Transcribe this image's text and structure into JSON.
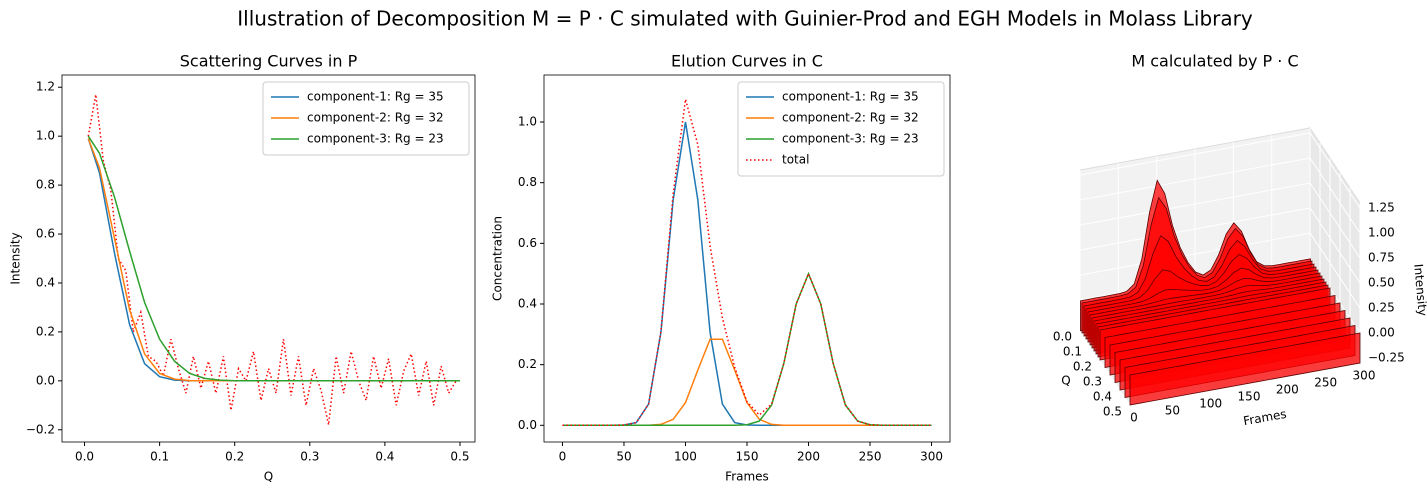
{
  "title": "Illustration of Decomposition M = P · C simulated with Guinier-Prod and EGH Models in Molass Library",
  "chart_data": [
    {
      "type": "line",
      "title": "Scattering Curves in P",
      "xlabel": "Q",
      "ylabel": "Intensity",
      "x": [
        0.005,
        0.02,
        0.04,
        0.06,
        0.08,
        0.1,
        0.12,
        0.14,
        0.16,
        0.18,
        0.2,
        0.25,
        0.3,
        0.35,
        0.4,
        0.45,
        0.5
      ],
      "series": [
        {
          "name": "component-1: Rg = 35",
          "color": "#1f77b4",
          "values": [
            0.99,
            0.85,
            0.52,
            0.23,
            0.07,
            0.017,
            0.003,
            0,
            0,
            0,
            0,
            0,
            0,
            0,
            0,
            0,
            0
          ]
        },
        {
          "name": "component-2: Rg = 32",
          "color": "#ff7f0e",
          "values": [
            0.99,
            0.87,
            0.58,
            0.29,
            0.11,
            0.03,
            0.007,
            0.001,
            0,
            0,
            0,
            0,
            0,
            0,
            0,
            0,
            0
          ]
        },
        {
          "name": "component-3: Rg = 23",
          "color": "#2ca02c",
          "values": [
            1.0,
            0.93,
            0.75,
            0.53,
            0.32,
            0.17,
            0.08,
            0.03,
            0.01,
            0.003,
            0,
            0,
            0,
            0,
            0,
            0,
            0
          ]
        },
        {
          "color": "#ff0000",
          "linestyle": "dotted",
          "x": [
            0.005,
            0.015,
            0.025,
            0.035,
            0.045,
            0.055,
            0.065,
            0.075,
            0.085,
            0.095,
            0.105,
            0.115,
            0.125,
            0.135,
            0.145,
            0.155,
            0.165,
            0.175,
            0.185,
            0.195,
            0.205,
            0.215,
            0.225,
            0.235,
            0.245,
            0.255,
            0.265,
            0.275,
            0.285,
            0.295,
            0.305,
            0.315,
            0.325,
            0.335,
            0.345,
            0.355,
            0.365,
            0.375,
            0.385,
            0.395,
            0.405,
            0.415,
            0.425,
            0.435,
            0.445,
            0.455,
            0.465,
            0.475,
            0.485,
            0.495
          ],
          "values": [
            1.0,
            1.17,
            0.9,
            0.78,
            0.5,
            0.45,
            0.2,
            0.28,
            0.1,
            0.08,
            0.02,
            0.17,
            0.05,
            -0.05,
            0.1,
            -0.03,
            0.08,
            -0.05,
            0.1,
            -0.12,
            0.05,
            0.0,
            0.12,
            -0.08,
            0.05,
            -0.05,
            0.17,
            -0.06,
            0.1,
            -0.1,
            0.05,
            -0.04,
            -0.18,
            0.1,
            -0.05,
            0.12,
            0.0,
            -0.08,
            0.1,
            -0.03,
            0.09,
            -0.1,
            0.04,
            0.11,
            -0.06,
            0.08,
            -0.1,
            0.06,
            -0.05,
            0.0
          ]
        }
      ],
      "xlim": [
        -0.03,
        0.52
      ],
      "xticks": [
        {
          "value": 0,
          "label": "0.0"
        },
        0.1,
        0.2,
        0.3,
        0.4,
        0.5
      ],
      "ylim": [
        -0.25,
        1.25
      ],
      "yticks": [
        {
          "value": -0.2,
          "label": "−0.2"
        },
        {
          "value": 0,
          "label": "0.0"
        },
        0.2,
        0.4,
        0.6,
        0.8,
        {
          "value": 1,
          "label": "1.0"
        },
        1.2
      ],
      "legend": "upper right"
    },
    {
      "type": "line",
      "title": "Elution Curves in C",
      "xlabel": "Frames",
      "ylabel": "Concentration",
      "x": [
        0,
        10,
        20,
        30,
        40,
        50,
        60,
        70,
        80,
        90,
        100,
        110,
        120,
        130,
        140,
        150,
        160,
        170,
        180,
        190,
        200,
        210,
        220,
        230,
        240,
        250,
        260,
        270,
        280,
        290,
        300
      ],
      "series": [
        {
          "name": "component-1: Rg = 35",
          "color": "#1f77b4",
          "values": [
            0,
            0,
            0,
            0,
            0,
            0.001,
            0.009,
            0.07,
            0.306,
            0.744,
            1.0,
            0.744,
            0.306,
            0.07,
            0.009,
            0.001,
            0,
            0,
            0,
            0,
            0,
            0,
            0,
            0,
            0,
            0,
            0,
            0,
            0,
            0,
            0
          ]
        },
        {
          "name": "component-2: Rg = 32",
          "color": "#ff7f0e",
          "values": [
            0,
            0,
            0,
            0,
            0,
            0,
            0,
            0,
            0.003,
            0.02,
            0.075,
            0.182,
            0.284,
            0.284,
            0.182,
            0.075,
            0.02,
            0.003,
            0,
            0,
            0,
            0,
            0,
            0,
            0,
            0,
            0,
            0,
            0,
            0,
            0
          ]
        },
        {
          "name": "component-3: Rg = 23",
          "color": "#2ca02c",
          "values": [
            0,
            0,
            0,
            0,
            0,
            0,
            0,
            0,
            0,
            0,
            0,
            0,
            0,
            0,
            0,
            0.002,
            0.014,
            0.067,
            0.205,
            0.4,
            0.5,
            0.4,
            0.205,
            0.067,
            0.014,
            0.002,
            0,
            0,
            0,
            0,
            0
          ]
        },
        {
          "name": "total",
          "color": "#ff0000",
          "linestyle": "dotted",
          "values": [
            0,
            0,
            0,
            0,
            0,
            0.001,
            0.009,
            0.07,
            0.309,
            0.764,
            1.075,
            0.926,
            0.59,
            0.354,
            0.191,
            0.078,
            0.034,
            0.07,
            0.205,
            0.4,
            0.5,
            0.4,
            0.205,
            0.067,
            0.014,
            0.002,
            0,
            0,
            0,
            0,
            0
          ]
        }
      ],
      "xlim": [
        -15,
        315
      ],
      "xticks": [
        0,
        50,
        100,
        150,
        200,
        250,
        300
      ],
      "ylim": [
        -0.055,
        1.155
      ],
      "yticks": [
        {
          "value": 0,
          "label": "0.0"
        },
        0.2,
        0.4,
        0.6,
        0.8,
        {
          "value": 1,
          "label": "1.0"
        }
      ],
      "legend": "upper right"
    },
    {
      "type": "surface3d",
      "title": "M calculated by P · C",
      "xlabel": "Q",
      "ylabel": "Frames",
      "zlabel": "Intensity",
      "color": "#ff0000",
      "xlim": [
        0,
        0.5
      ],
      "xticks": [
        {
          "value": 0,
          "label": "0.0"
        },
        0.1,
        0.2,
        0.3,
        0.4,
        0.5
      ],
      "ylim": [
        0,
        300
      ],
      "yticks": [
        0,
        50,
        100,
        150,
        200,
        250,
        300
      ],
      "zlim": [
        -0.3,
        1.3
      ],
      "zticks": [
        {
          "value": -0.25,
          "label": "−0.25"
        },
        {
          "value": 0,
          "label": "0.00"
        },
        0.25,
        {
          "value": 0.5,
          "label": "0.50"
        },
        0.75,
        {
          "value": 1,
          "label": "1.00"
        },
        1.25
      ]
    }
  ]
}
